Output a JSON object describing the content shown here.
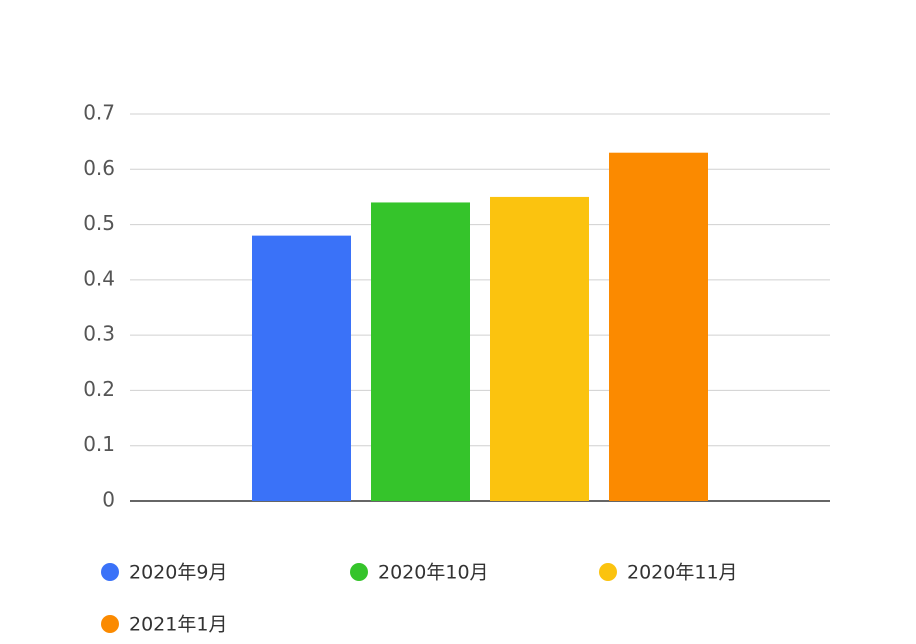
{
  "chart_data": {
    "type": "bar",
    "categories": [
      null
    ],
    "series": [
      {
        "name": "2020年9月",
        "color": "#3a72f8",
        "values": [
          0.48
        ]
      },
      {
        "name": "2020年10月",
        "color": "#35c42b",
        "values": [
          0.54
        ]
      },
      {
        "name": "2020年11月",
        "color": "#fbc30f",
        "values": [
          0.55
        ]
      },
      {
        "name": "2021年1月",
        "color": "#fb8a00",
        "values": [
          0.63
        ]
      }
    ],
    "ylim": [
      0,
      0.7
    ],
    "yticks": [
      0,
      0.1,
      0.2,
      0.3,
      0.4,
      0.5,
      0.6,
      0.7
    ],
    "grid": true,
    "legend": "bottom"
  }
}
